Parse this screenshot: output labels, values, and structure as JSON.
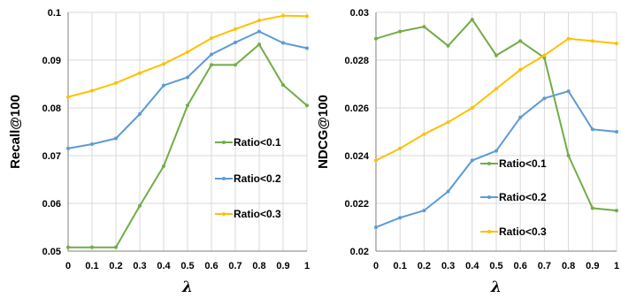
{
  "chart_data": [
    {
      "type": "line",
      "title": "",
      "xlabel": "λ",
      "ylabel": "Recall@100",
      "x": [
        0,
        0.1,
        0.2,
        0.3,
        0.4,
        0.5,
        0.6,
        0.7,
        0.8,
        0.9,
        1
      ],
      "x_tick_labels": [
        "0",
        "0.1",
        "0.2",
        "0.3",
        "0.4",
        "0.5",
        "0.6",
        "0.7",
        "0.8",
        "0.9",
        "1"
      ],
      "ylim": [
        0.05,
        0.1
      ],
      "y_ticks": [
        0.05,
        0.06,
        0.07,
        0.08,
        0.09,
        0.1
      ],
      "y_tick_labels": [
        "0.05",
        "0.06",
        "0.07",
        "0.08",
        "0.09",
        "0.1"
      ],
      "grid": true,
      "legend_position": "right, inside plot",
      "series": [
        {
          "name": "Ratio<0.1",
          "color": "#70AD47",
          "values": [
            0.0508,
            0.0508,
            0.0508,
            0.0595,
            0.0678,
            0.0805,
            0.089,
            0.089,
            0.0933,
            0.0848,
            0.0805
          ]
        },
        {
          "name": "Ratio<0.2",
          "color": "#5B9BD5",
          "values": [
            0.0715,
            0.0724,
            0.0736,
            0.0787,
            0.0847,
            0.0864,
            0.0912,
            0.0937,
            0.096,
            0.0936,
            0.0925
          ]
        },
        {
          "name": "Ratio<0.3",
          "color": "#FFC000",
          "values": [
            0.0823,
            0.0836,
            0.0852,
            0.0873,
            0.0892,
            0.0917,
            0.0946,
            0.0965,
            0.0983,
            0.0993,
            0.0992
          ]
        }
      ]
    },
    {
      "type": "line",
      "title": "",
      "xlabel": "λ",
      "ylabel": "NDCG@100",
      "x": [
        0,
        0.1,
        0.2,
        0.3,
        0.4,
        0.5,
        0.6,
        0.7,
        0.8,
        0.9,
        1
      ],
      "x_tick_labels": [
        "0",
        "0.1",
        "0.2",
        "0.3",
        "0.4",
        "0.5",
        "0.6",
        "0.7",
        "0.8",
        "0.9",
        "1"
      ],
      "ylim": [
        0.02,
        0.03
      ],
      "y_ticks": [
        0.02,
        0.022,
        0.024,
        0.026,
        0.028,
        0.03
      ],
      "y_tick_labels": [
        "0.02",
        "0.022",
        "0.024",
        "0.026",
        "0.028",
        "0.03"
      ],
      "grid": true,
      "legend_position": "lower-middle, inside plot",
      "series": [
        {
          "name": "Ratio<0.1",
          "color": "#70AD47",
          "values": [
            0.0289,
            0.0292,
            0.0294,
            0.0286,
            0.0297,
            0.0282,
            0.0288,
            0.0281,
            0.024,
            0.0218,
            0.0217
          ]
        },
        {
          "name": "Ratio<0.2",
          "color": "#5B9BD5",
          "values": [
            0.021,
            0.0214,
            0.0217,
            0.0225,
            0.0238,
            0.0242,
            0.0256,
            0.0264,
            0.0267,
            0.0251,
            0.025
          ]
        },
        {
          "name": "Ratio<0.3",
          "color": "#FFC000",
          "values": [
            0.0238,
            0.0243,
            0.0249,
            0.0254,
            0.026,
            0.0268,
            0.0276,
            0.0282,
            0.0289,
            0.0288,
            0.0287
          ]
        }
      ]
    }
  ]
}
